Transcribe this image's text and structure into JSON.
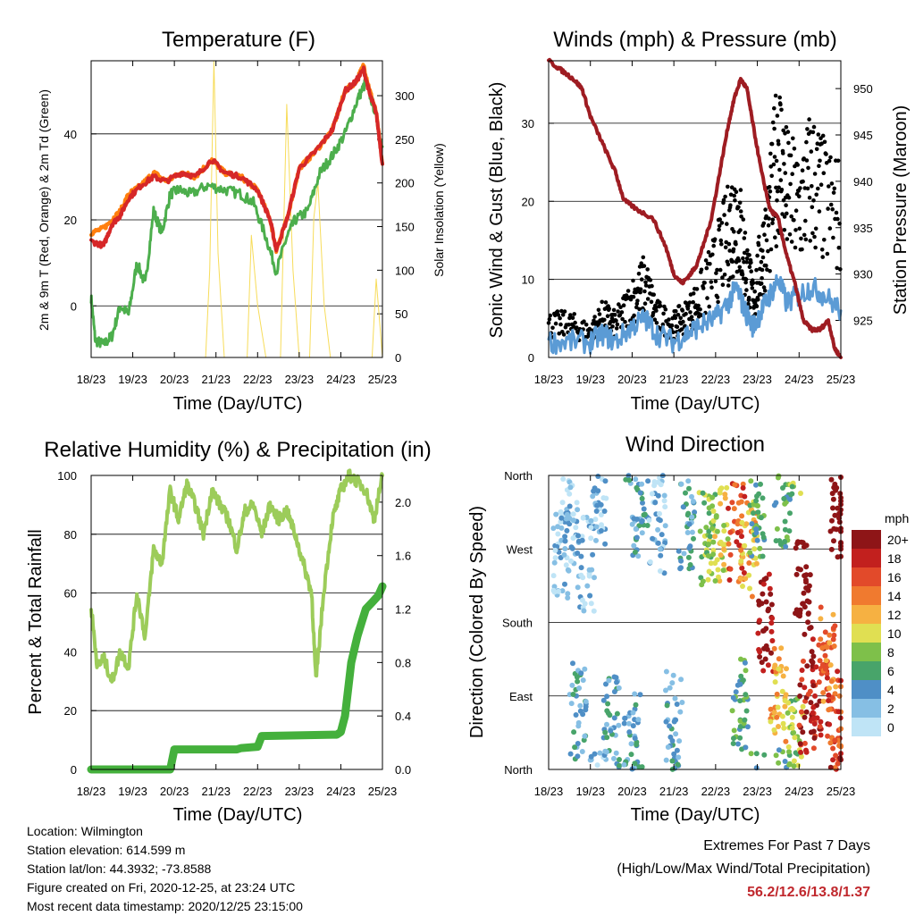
{
  "chart_data": [
    {
      "type": "line",
      "title": "Temperature (F)",
      "xlabel": "Time (Day/UTC)",
      "ylabel": "2m & 9m T (Red, Orange) & 2m Td (Green)",
      "ylabel_right": "Solar Insolation (Yellow)",
      "x_ticks": [
        "18/23",
        "19/23",
        "20/23",
        "21/23",
        "22/23",
        "23/23",
        "24/23",
        "25/23"
      ],
      "xlim": [
        0,
        7
      ],
      "ylim": [
        -12,
        57
      ],
      "y_ticks": [
        0,
        20,
        40
      ],
      "ylim_right": [
        0,
        340
      ],
      "y_ticks_right": [
        0,
        50,
        100,
        150,
        200,
        250,
        300
      ],
      "grid": "horizontal",
      "series": [
        {
          "color": "#d62728",
          "axis": "left",
          "x": [
            0,
            0.3,
            0.5,
            0.7,
            0.9,
            1.2,
            1.5,
            1.8,
            2.2,
            2.5,
            2.9,
            3.2,
            3.6,
            4.0,
            4.3,
            4.45,
            4.7,
            5.0,
            5.4,
            5.8,
            6.1,
            6.35,
            6.55,
            6.7,
            6.85,
            7.0
          ],
          "y": [
            15,
            14,
            19,
            21,
            25,
            28,
            30,
            29,
            31,
            30,
            34,
            31,
            30,
            27,
            20,
            13,
            20,
            32,
            36,
            41,
            50,
            52,
            55,
            49,
            45,
            33
          ]
        },
        {
          "color": "#ff7f0e",
          "axis": "left",
          "x": [
            0,
            0.3,
            0.5,
            0.7,
            0.9,
            1.2,
            1.5,
            1.8,
            2.2,
            2.5,
            2.9,
            3.2,
            3.6,
            4.0,
            4.3,
            4.45,
            4.7,
            5.0,
            5.4,
            5.8,
            6.1,
            6.35,
            6.55,
            6.7,
            6.85,
            7.0
          ],
          "y": [
            17,
            18,
            20,
            22,
            26,
            28,
            31,
            29,
            31,
            30,
            34,
            31,
            30,
            27,
            20,
            13,
            20,
            32,
            36,
            41,
            50,
            52,
            56,
            50,
            45,
            33
          ]
        },
        {
          "color": "#4cae4c",
          "axis": "left",
          "x": [
            0,
            0.1,
            0.3,
            0.5,
            0.7,
            0.9,
            1.1,
            1.3,
            1.5,
            1.7,
            1.9,
            2.1,
            2.4,
            2.8,
            3.2,
            3.6,
            3.9,
            4.2,
            4.45,
            4.7,
            4.9,
            5.2,
            5.5,
            5.8,
            6.1,
            6.4,
            6.6,
            6.8,
            7.0
          ],
          "y": [
            2,
            -8,
            -9,
            -7,
            0,
            -2,
            10,
            5,
            22,
            17,
            26,
            27,
            26,
            28,
            27,
            26,
            24,
            16,
            8,
            16,
            20,
            22,
            31,
            35,
            40,
            48,
            52,
            46,
            37
          ]
        },
        {
          "color": "#f7dc5a",
          "axis": "right",
          "x": [
            0,
            2.75,
            2.85,
            2.95,
            3.05,
            3.2,
            3.75,
            3.85,
            4.0,
            4.2,
            4.4,
            4.55,
            4.7,
            4.85,
            5.0,
            5.25,
            5.35,
            5.45,
            5.6,
            5.75,
            5.9,
            6.25,
            6.55,
            6.75,
            6.85,
            6.95,
            7.0
          ],
          "y": [
            0,
            0,
            100,
            340,
            120,
            0,
            0,
            140,
            60,
            0,
            0,
            0,
            290,
            100,
            0,
            0,
            160,
            200,
            60,
            0,
            0,
            0,
            0,
            0,
            90,
            30,
            0
          ]
        }
      ]
    },
    {
      "type": "line",
      "title": "Winds (mph) & Pressure (mb)",
      "xlabel": "Time (Day/UTC)",
      "ylabel": "Sonic Wind & Gust (Blue, Black)",
      "ylabel_right": "Station Pressure (Maroon)",
      "x_ticks": [
        "18/23",
        "19/23",
        "20/23",
        "21/23",
        "22/23",
        "23/23",
        "24/23",
        "25/23"
      ],
      "xlim": [
        0,
        7
      ],
      "ylim": [
        0,
        38
      ],
      "y_ticks": [
        0,
        10,
        20,
        30
      ],
      "ylim_right": [
        921,
        953
      ],
      "y_ticks_right": [
        925,
        930,
        935,
        940,
        945,
        950
      ],
      "grid": "horizontal",
      "series": [
        {
          "color": "#5b9bd5",
          "axis": "left",
          "x": [
            0,
            0.5,
            1,
            1.3,
            1.6,
            2,
            2.3,
            2.6,
            3,
            3.3,
            3.6,
            4,
            4.3,
            4.5,
            4.7,
            4.9,
            5.1,
            5.3,
            5.5,
            5.7,
            6,
            6.3,
            6.6,
            7
          ],
          "y": [
            2,
            2,
            2,
            3,
            2,
            4,
            5,
            3,
            2,
            3,
            4,
            5,
            7,
            9,
            6,
            4,
            6,
            8,
            10,
            7,
            8,
            9,
            8,
            6
          ]
        },
        {
          "color": "#000000",
          "axis": "left",
          "x": [
            0,
            0.5,
            1,
            1.3,
            1.6,
            2,
            2.3,
            2.6,
            3,
            3.3,
            3.6,
            4,
            4.3,
            4.5,
            4.7,
            4.9,
            5.1,
            5.3,
            5.5,
            5.7,
            6,
            6.3,
            6.6,
            7
          ],
          "y": [
            4,
            4,
            3,
            5,
            4,
            7,
            9,
            5,
            4,
            5,
            7,
            11,
            15,
            18,
            12,
            7,
            12,
            17,
            26,
            20,
            18,
            22,
            19,
            17
          ]
        },
        {
          "color": "#9e1c22",
          "axis": "right",
          "x": [
            0,
            0.3,
            0.6,
            0.8,
            1,
            1.3,
            1.6,
            1.8,
            2.1,
            2.5,
            2.8,
            3.0,
            3.2,
            3.4,
            3.55,
            3.7,
            3.9,
            4.1,
            4.3,
            4.45,
            4.6,
            4.75,
            4.9,
            5.1,
            5.3,
            5.5,
            5.7,
            5.9,
            6.1,
            6.3,
            6.5,
            6.7,
            6.85,
            7.0
          ],
          "y": [
            953,
            952,
            951,
            950,
            947,
            944,
            941,
            938,
            937,
            936,
            933,
            930,
            929,
            930,
            931,
            933,
            936,
            941,
            946,
            949,
            951,
            950,
            946,
            941,
            937,
            936,
            932,
            929,
            925,
            924,
            924,
            925,
            922,
            921
          ]
        }
      ]
    },
    {
      "type": "line",
      "title": "Relative Humidity (%) & Precipitation (in)",
      "xlabel": "Time (Day/UTC)",
      "ylabel": "Percent & Total Rainfall",
      "x_ticks": [
        "18/23",
        "19/23",
        "20/23",
        "21/23",
        "22/23",
        "23/23",
        "24/23",
        "25/23"
      ],
      "xlim": [
        0,
        7
      ],
      "ylim": [
        0,
        100
      ],
      "y_ticks": [
        0,
        20,
        40,
        60,
        80,
        100
      ],
      "ylim_right": [
        0,
        2.2
      ],
      "y_ticks_right": [
        "0.0",
        "0.4",
        "0.8",
        "1.2",
        "1.6",
        "2.0"
      ],
      "grid": "horizontal",
      "series": [
        {
          "color": "#9ccc5a",
          "axis": "left",
          "x": [
            0,
            0.15,
            0.3,
            0.5,
            0.7,
            0.9,
            1.1,
            1.3,
            1.5,
            1.7,
            1.9,
            2.1,
            2.3,
            2.5,
            2.7,
            2.9,
            3.1,
            3.3,
            3.5,
            3.7,
            3.9,
            4.1,
            4.3,
            4.5,
            4.7,
            4.9,
            5.1,
            5.3,
            5.4,
            5.6,
            5.8,
            6.0,
            6.2,
            6.4,
            6.6,
            6.8,
            7.0
          ],
          "y": [
            55,
            35,
            38,
            30,
            40,
            35,
            60,
            45,
            75,
            70,
            95,
            85,
            97,
            90,
            80,
            95,
            90,
            85,
            75,
            88,
            90,
            80,
            90,
            85,
            88,
            80,
            70,
            60,
            30,
            62,
            85,
            95,
            100,
            98,
            95,
            85,
            100
          ]
        },
        {
          "color": "#44b03c",
          "axis": "right",
          "x": [
            0,
            1.9,
            2.0,
            3.5,
            3.6,
            4.0,
            4.1,
            5.8,
            5.9,
            6.0,
            6.1,
            6.25,
            6.4,
            6.5,
            6.6,
            6.75,
            6.9,
            7.0
          ],
          "y": [
            0.0,
            0.0,
            0.15,
            0.15,
            0.16,
            0.17,
            0.25,
            0.26,
            0.26,
            0.28,
            0.4,
            0.8,
            1.0,
            1.1,
            1.2,
            1.25,
            1.3,
            1.37
          ]
        }
      ]
    },
    {
      "type": "scatter",
      "title": "Wind Direction",
      "xlabel": "Time (Day/UTC)",
      "ylabel": "Direction (Colored By Speed)",
      "x_ticks": [
        "18/23",
        "19/23",
        "20/23",
        "21/23",
        "22/23",
        "23/23",
        "24/23",
        "25/23"
      ],
      "y_ticks": [
        "North",
        "East",
        "South",
        "West",
        "North"
      ],
      "xlim": [
        0,
        7
      ],
      "ylim": [
        0,
        360
      ],
      "grid": "horizontal",
      "colorbar_title": "mph",
      "colorbar_labels": [
        "0",
        "2",
        "4",
        "6",
        "8",
        "10",
        "12",
        "14",
        "16",
        "18",
        "20+"
      ],
      "colorbar_colors": [
        "#bfe4f6",
        "#86bfe4",
        "#4f8fc6",
        "#48a46a",
        "#7ec04a",
        "#e0df52",
        "#f6b142",
        "#f07a2f",
        "#e24a2a",
        "#c2201e",
        "#8e1517"
      ],
      "clusters": [
        {
          "x": 0.3,
          "dir": 270,
          "speed": 1
        },
        {
          "x": 0.5,
          "dir": 300,
          "speed": 1
        },
        {
          "x": 0.9,
          "dir": 250,
          "speed": 1
        },
        {
          "x": 1.2,
          "dir": 330,
          "speed": 1
        },
        {
          "x": 0.7,
          "dir": 70,
          "speed": 2
        },
        {
          "x": 1.5,
          "dir": 60,
          "speed": 2
        },
        {
          "x": 2.0,
          "dir": 40,
          "speed": 2
        },
        {
          "x": 2.2,
          "dir": 320,
          "speed": 2
        },
        {
          "x": 2.6,
          "dir": 300,
          "speed": 1
        },
        {
          "x": 3.0,
          "dir": 60,
          "speed": 2
        },
        {
          "x": 3.3,
          "dir": 300,
          "speed": 2
        },
        {
          "x": 3.8,
          "dir": 280,
          "speed": 4
        },
        {
          "x": 4.1,
          "dir": 285,
          "speed": 5
        },
        {
          "x": 4.5,
          "dir": 290,
          "speed": 8
        },
        {
          "x": 4.8,
          "dir": 270,
          "speed": 6
        },
        {
          "x": 4.6,
          "dir": 80,
          "speed": 3
        },
        {
          "x": 5.0,
          "dir": 320,
          "speed": 3
        },
        {
          "x": 5.2,
          "dir": 180,
          "speed": 10
        },
        {
          "x": 5.5,
          "dir": 90,
          "speed": 6
        },
        {
          "x": 5.6,
          "dir": 330,
          "speed": 3
        },
        {
          "x": 5.9,
          "dir": 30,
          "speed": 4
        },
        {
          "x": 6.1,
          "dir": 220,
          "speed": 11
        },
        {
          "x": 6.2,
          "dir": 80,
          "speed": 9
        },
        {
          "x": 6.5,
          "dir": 100,
          "speed": 9
        },
        {
          "x": 6.7,
          "dir": 140,
          "speed": 7
        },
        {
          "x": 6.85,
          "dir": 60,
          "speed": 8
        },
        {
          "x": 6.95,
          "dir": 320,
          "speed": 11
        }
      ]
    }
  ],
  "info": {
    "location": "Location: Wilmington",
    "elevation": "Station elevation: 614.599 m",
    "latlon": "Station lat/lon: 44.3932; -73.8588",
    "created": "Figure created on Fri, 2020-12-25, at 23:24 UTC",
    "recent": "Most recent data timestamp: 2020/12/25 23:15:00"
  },
  "extremes": {
    "title": "Extremes For Past 7 Days",
    "subtitle": "(High/Low/Max Wind/Total Precipitation)",
    "values": "56.2/12.6/13.8/1.37"
  }
}
